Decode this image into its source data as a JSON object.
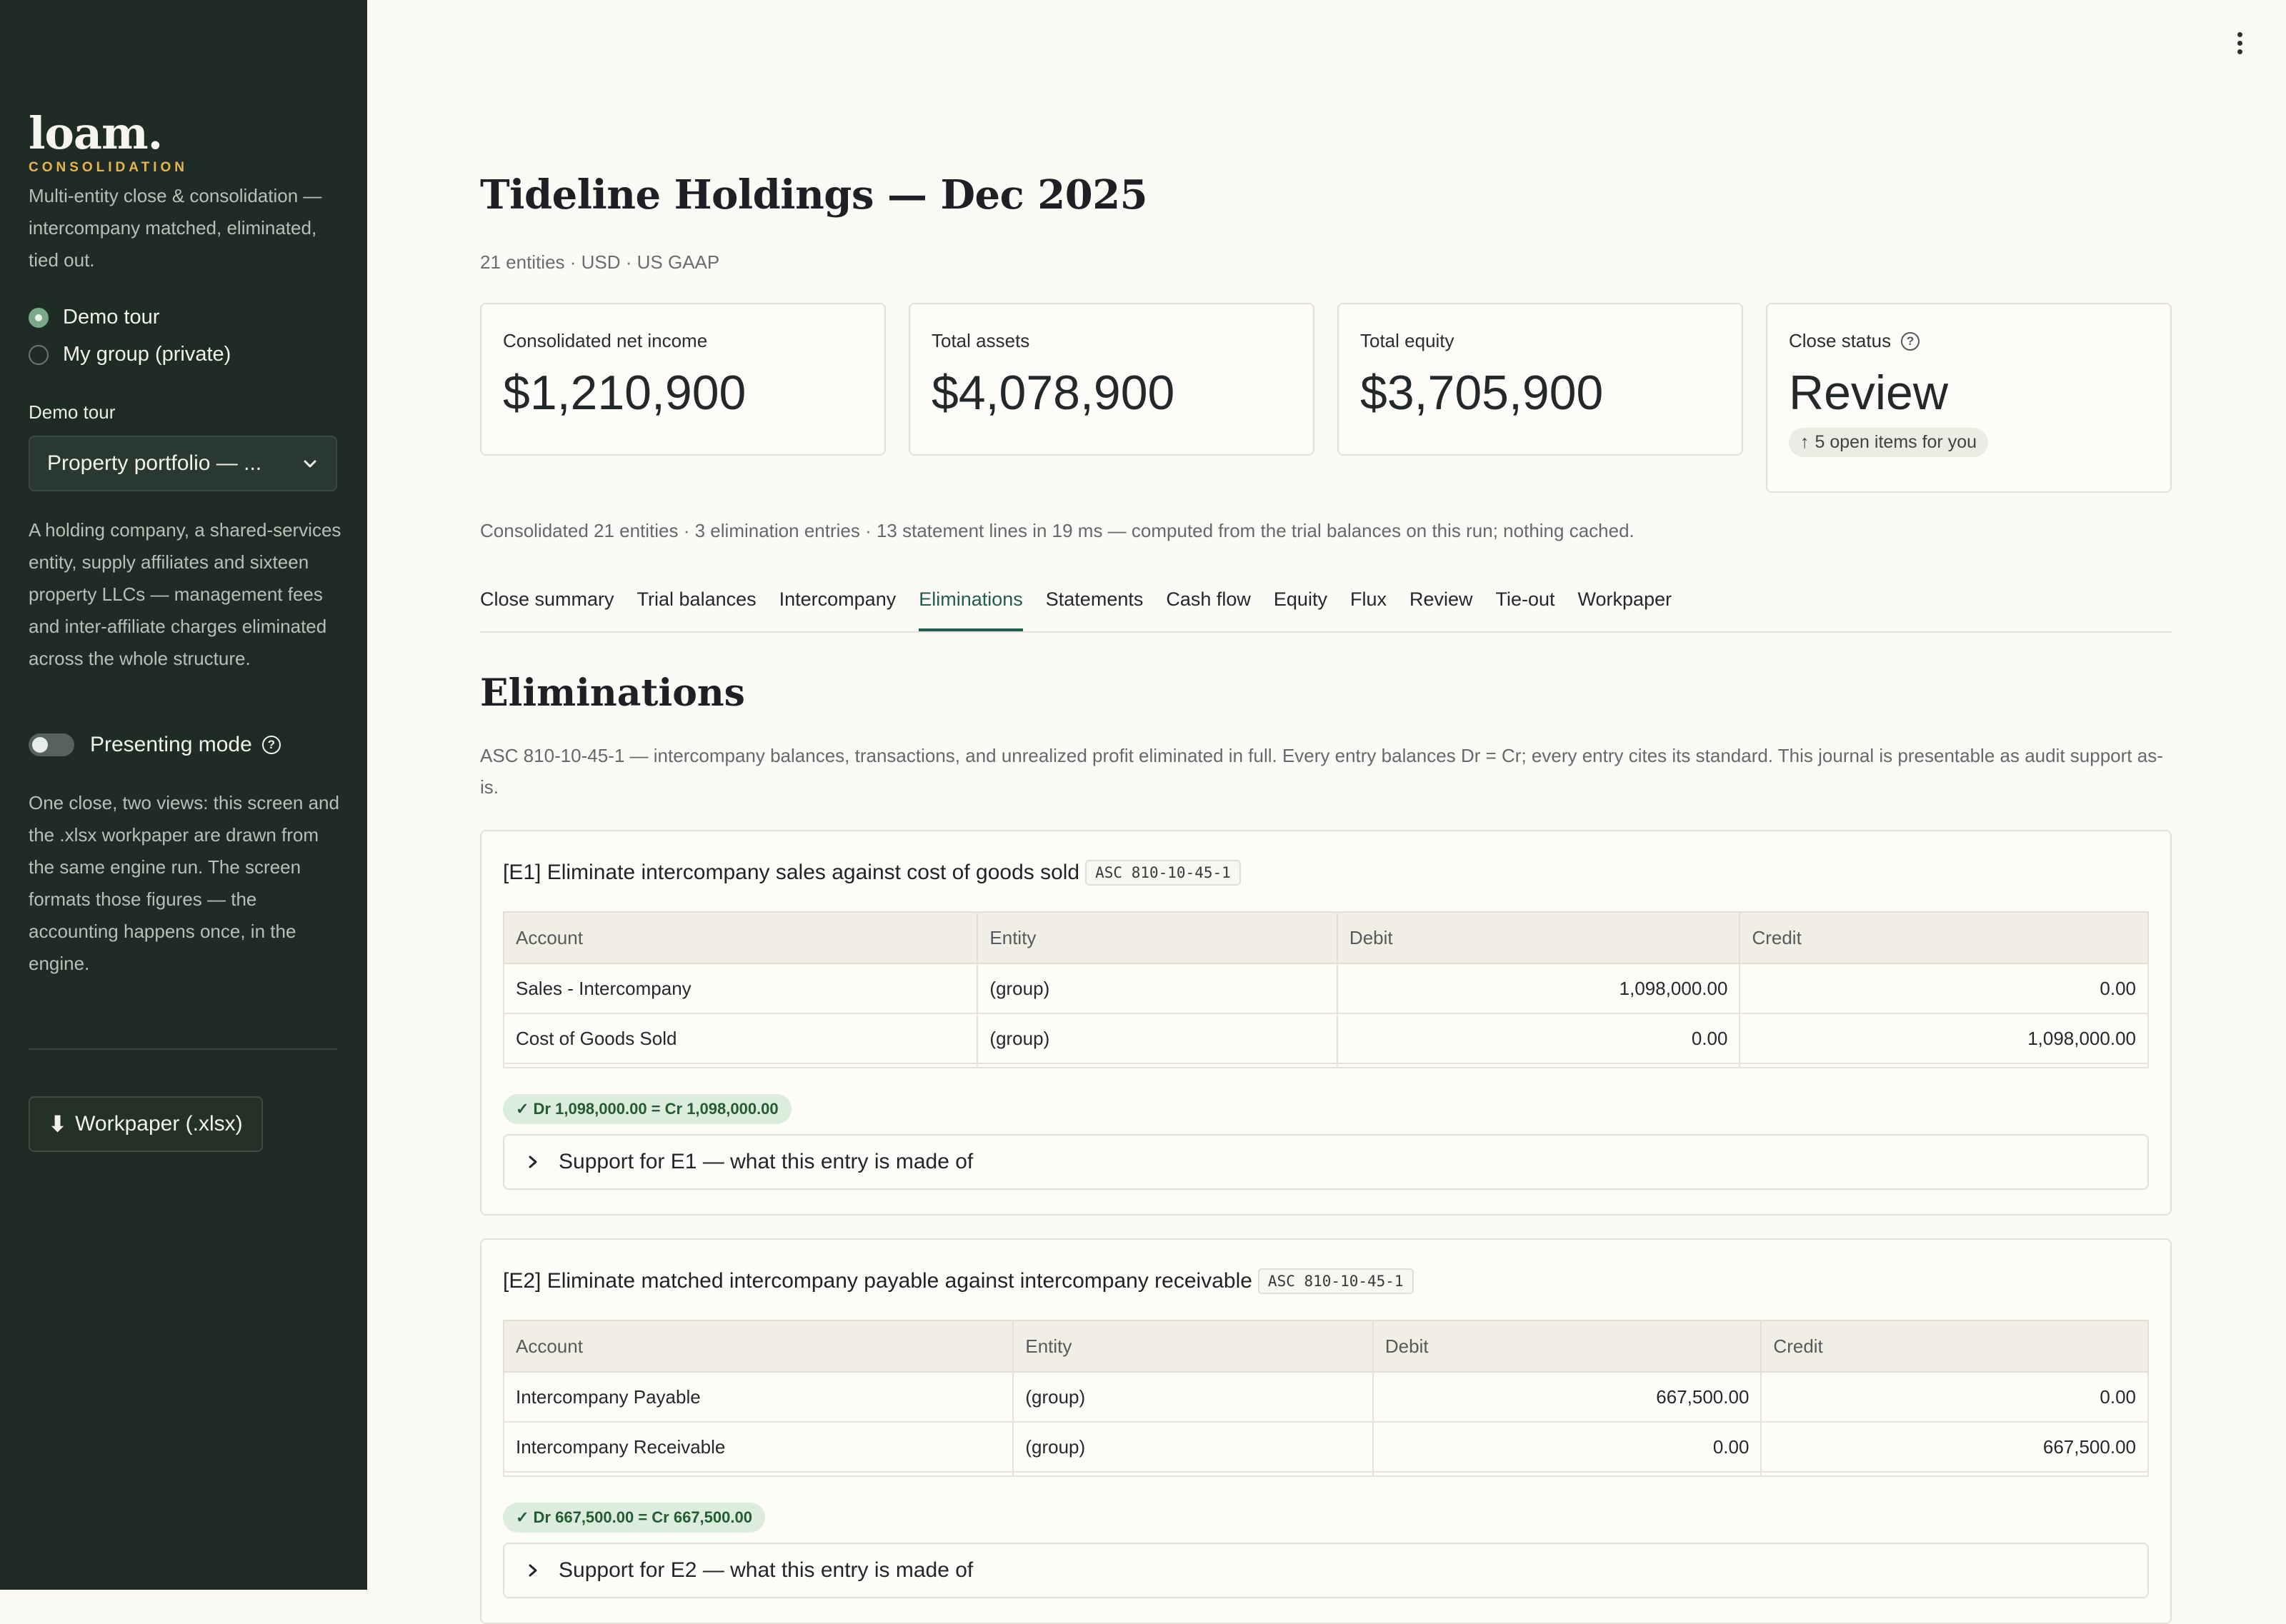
{
  "sidebar": {
    "brand": "loam.",
    "brand_sub": "CONSOLIDATION",
    "tagline": "Multi-entity close & consolidation — intercompany matched, eliminated, tied out.",
    "radios": [
      {
        "label": "Demo tour",
        "selected": true
      },
      {
        "label": "My group (private)",
        "selected": false
      }
    ],
    "demo_tour_label": "Demo tour",
    "demo_tour_select": "Property portfolio — ...",
    "description": "A holding company, a shared-services entity, supply affiliates and sixteen property LLCs — management fees and inter-affiliate charges eliminated across the whole structure.",
    "presenting_mode_label": "Presenting mode",
    "presenting_mode_on": false,
    "views_note": "One close, two views: this screen and the .xlsx workpaper are drawn from the same engine run. The screen formats those figures — the accounting happens once, in the engine.",
    "download_label": "Workpaper (.xlsx)"
  },
  "header": {
    "title": "Tideline Holdings — Dec 2025",
    "subtitle": "21 entities · USD · US GAAP"
  },
  "kpis": [
    {
      "label": "Consolidated net income",
      "value": "$1,210,900"
    },
    {
      "label": "Total assets",
      "value": "$4,078,900"
    },
    {
      "label": "Total equity",
      "value": "$3,705,900"
    },
    {
      "label": "Close status",
      "value": "Review",
      "pill": "5 open items for you"
    }
  ],
  "computed_note": "Consolidated 21 entities · 3 elimination entries · 13 statement lines in 19 ms — computed from the trial balances on this run; nothing cached.",
  "tabs": [
    "Close summary",
    "Trial balances",
    "Intercompany",
    "Eliminations",
    "Statements",
    "Cash flow",
    "Equity",
    "Flux",
    "Review",
    "Tie-out",
    "Workpaper"
  ],
  "active_tab": "Eliminations",
  "section": {
    "title": "Eliminations",
    "description": "ASC 810-10-45-1 — intercompany balances, transactions, and unrealized profit eliminated in full. Every entry balances Dr = Cr; every entry cites its standard. This journal is presentable as audit support as-is."
  },
  "table_headers": [
    "Account",
    "Entity",
    "Debit",
    "Credit"
  ],
  "entries": [
    {
      "id": "[E1]",
      "title": "Eliminate intercompany sales against cost of goods sold",
      "code": "ASC 810-10-45-1",
      "rows": [
        {
          "account": "Sales - Intercompany",
          "entity": "(group)",
          "debit": "1,098,000.00",
          "credit": "0.00"
        },
        {
          "account": "Cost of Goods Sold",
          "entity": "(group)",
          "debit": "0.00",
          "credit": "1,098,000.00"
        }
      ],
      "balance": "✓ Dr 1,098,000.00 = Cr 1,098,000.00",
      "support": "Support for E1 — what this entry is made of"
    },
    {
      "id": "[E2]",
      "title": "Eliminate matched intercompany payable against intercompany receivable",
      "code": "ASC 810-10-45-1",
      "rows": [
        {
          "account": "Intercompany Payable",
          "entity": "(group)",
          "debit": "667,500.00",
          "credit": "0.00"
        },
        {
          "account": "Intercompany Receivable",
          "entity": "(group)",
          "debit": "0.00",
          "credit": "667,500.00"
        }
      ],
      "balance": "✓ Dr 667,500.00 = Cr 667,500.00",
      "support": "Support for E2 — what this entry is made of"
    }
  ],
  "colors": {
    "sidebar_bg": "#1f2c26",
    "accent_gold": "#e9b44c",
    "active_tab": "#1f5d4d",
    "balance_bg": "#dcecdd"
  }
}
